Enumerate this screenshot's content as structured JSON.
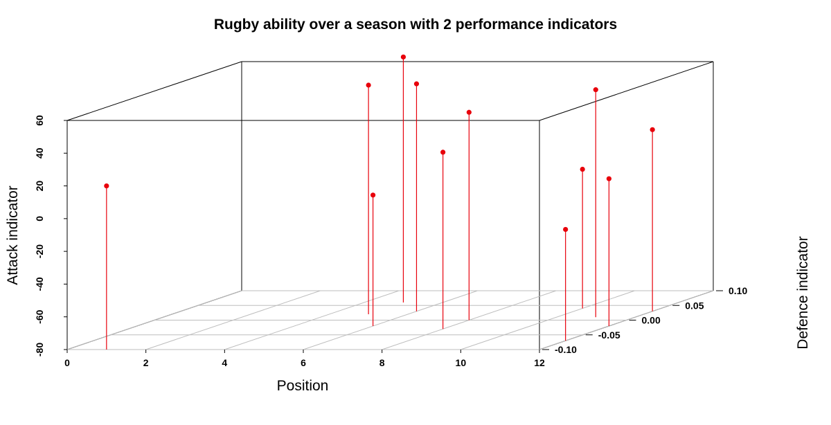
{
  "chart_data": {
    "type": "scatter",
    "projection": "3d-perspective",
    "title": "Rugby ability over a season with 2 performance indicators",
    "xlabel": "Position",
    "ylabel": "Defence indicator",
    "zlabel": "Attack indicator",
    "xlim": [
      0,
      12
    ],
    "ylim": [
      -0.1,
      0.1
    ],
    "zlim": [
      -80,
      60
    ],
    "x_ticks": [
      "0",
      "2",
      "4",
      "6",
      "8",
      "10",
      "12"
    ],
    "y_ticks": [
      "-0.10",
      "-0.05",
      "0.00",
      "0.05",
      "0.10"
    ],
    "z_ticks": [
      "-80",
      "-60",
      "-40",
      "-20",
      "0",
      "20",
      "40",
      "60"
    ],
    "point_type": "h",
    "point_color": "#e8000b",
    "grid": true,
    "points": [
      {
        "x": 1,
        "y": -0.1,
        "z": 20
      },
      {
        "x": 5,
        "y": 0.06,
        "z": 70
      },
      {
        "x": 5,
        "y": 0.02,
        "z": 60
      },
      {
        "x": 6,
        "y": 0.03,
        "z": 59
      },
      {
        "x": 6,
        "y": -0.02,
        "z": 0
      },
      {
        "x": 8,
        "y": 0.0,
        "z": 47
      },
      {
        "x": 8,
        "y": -0.03,
        "z": 28
      },
      {
        "x": 10,
        "y": 0.04,
        "z": 5
      },
      {
        "x": 11,
        "y": 0.01,
        "z": 59
      },
      {
        "x": 12,
        "y": 0.03,
        "z": 31
      },
      {
        "x": 12,
        "y": -0.02,
        "z": 10
      },
      {
        "x": 12,
        "y": -0.07,
        "z": -12
      }
    ]
  }
}
